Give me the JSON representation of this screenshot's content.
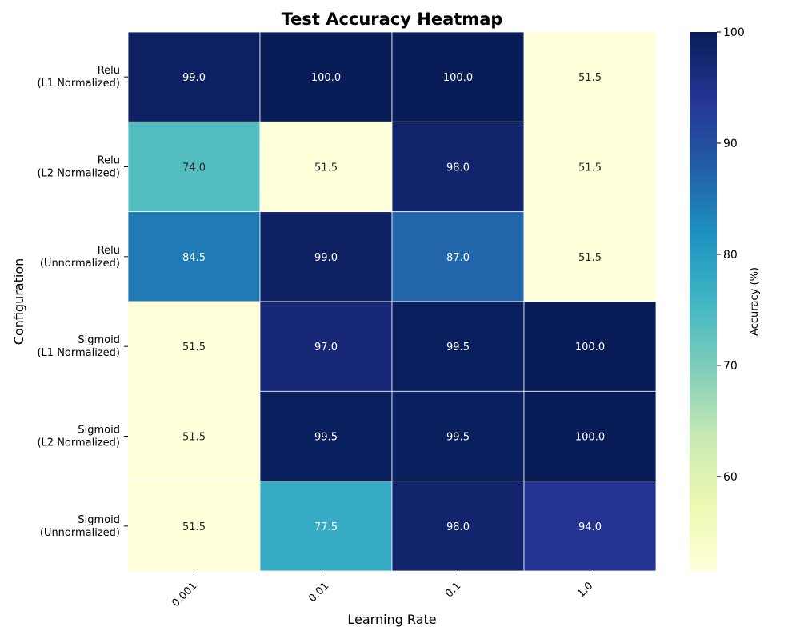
{
  "chart_data": {
    "type": "heatmap",
    "title": "Test Accuracy Heatmap",
    "xlabel": "Learning Rate",
    "ylabel": "Configuration",
    "x_categories": [
      "0.001",
      "0.01",
      "0.1",
      "1.0"
    ],
    "y_categories": [
      [
        "Relu",
        "(L1 Normalized)"
      ],
      [
        "Relu",
        "(L2 Normalized)"
      ],
      [
        "Relu",
        "(Unnormalized)"
      ],
      [
        "Sigmoid",
        "(L1 Normalized)"
      ],
      [
        "Sigmoid",
        "(L2 Normalized)"
      ],
      [
        "Sigmoid",
        "(Unnormalized)"
      ]
    ],
    "values": [
      [
        99.0,
        100.0,
        100.0,
        51.5
      ],
      [
        74.0,
        51.5,
        98.0,
        51.5
      ],
      [
        84.5,
        99.0,
        87.0,
        51.5
      ],
      [
        51.5,
        97.0,
        99.5,
        100.0
      ],
      [
        51.5,
        99.5,
        99.5,
        100.0
      ],
      [
        51.5,
        77.5,
        98.0,
        94.0
      ]
    ],
    "colormap": "YlGnBu",
    "value_range": [
      51.5,
      100
    ],
    "colorbar": {
      "label": "Accuracy (%)",
      "ticks": [
        60,
        70,
        80,
        90,
        100
      ]
    },
    "annotations_format": "one decimal",
    "grid": "white cell borders",
    "x_tick_rotation_deg": 45
  }
}
